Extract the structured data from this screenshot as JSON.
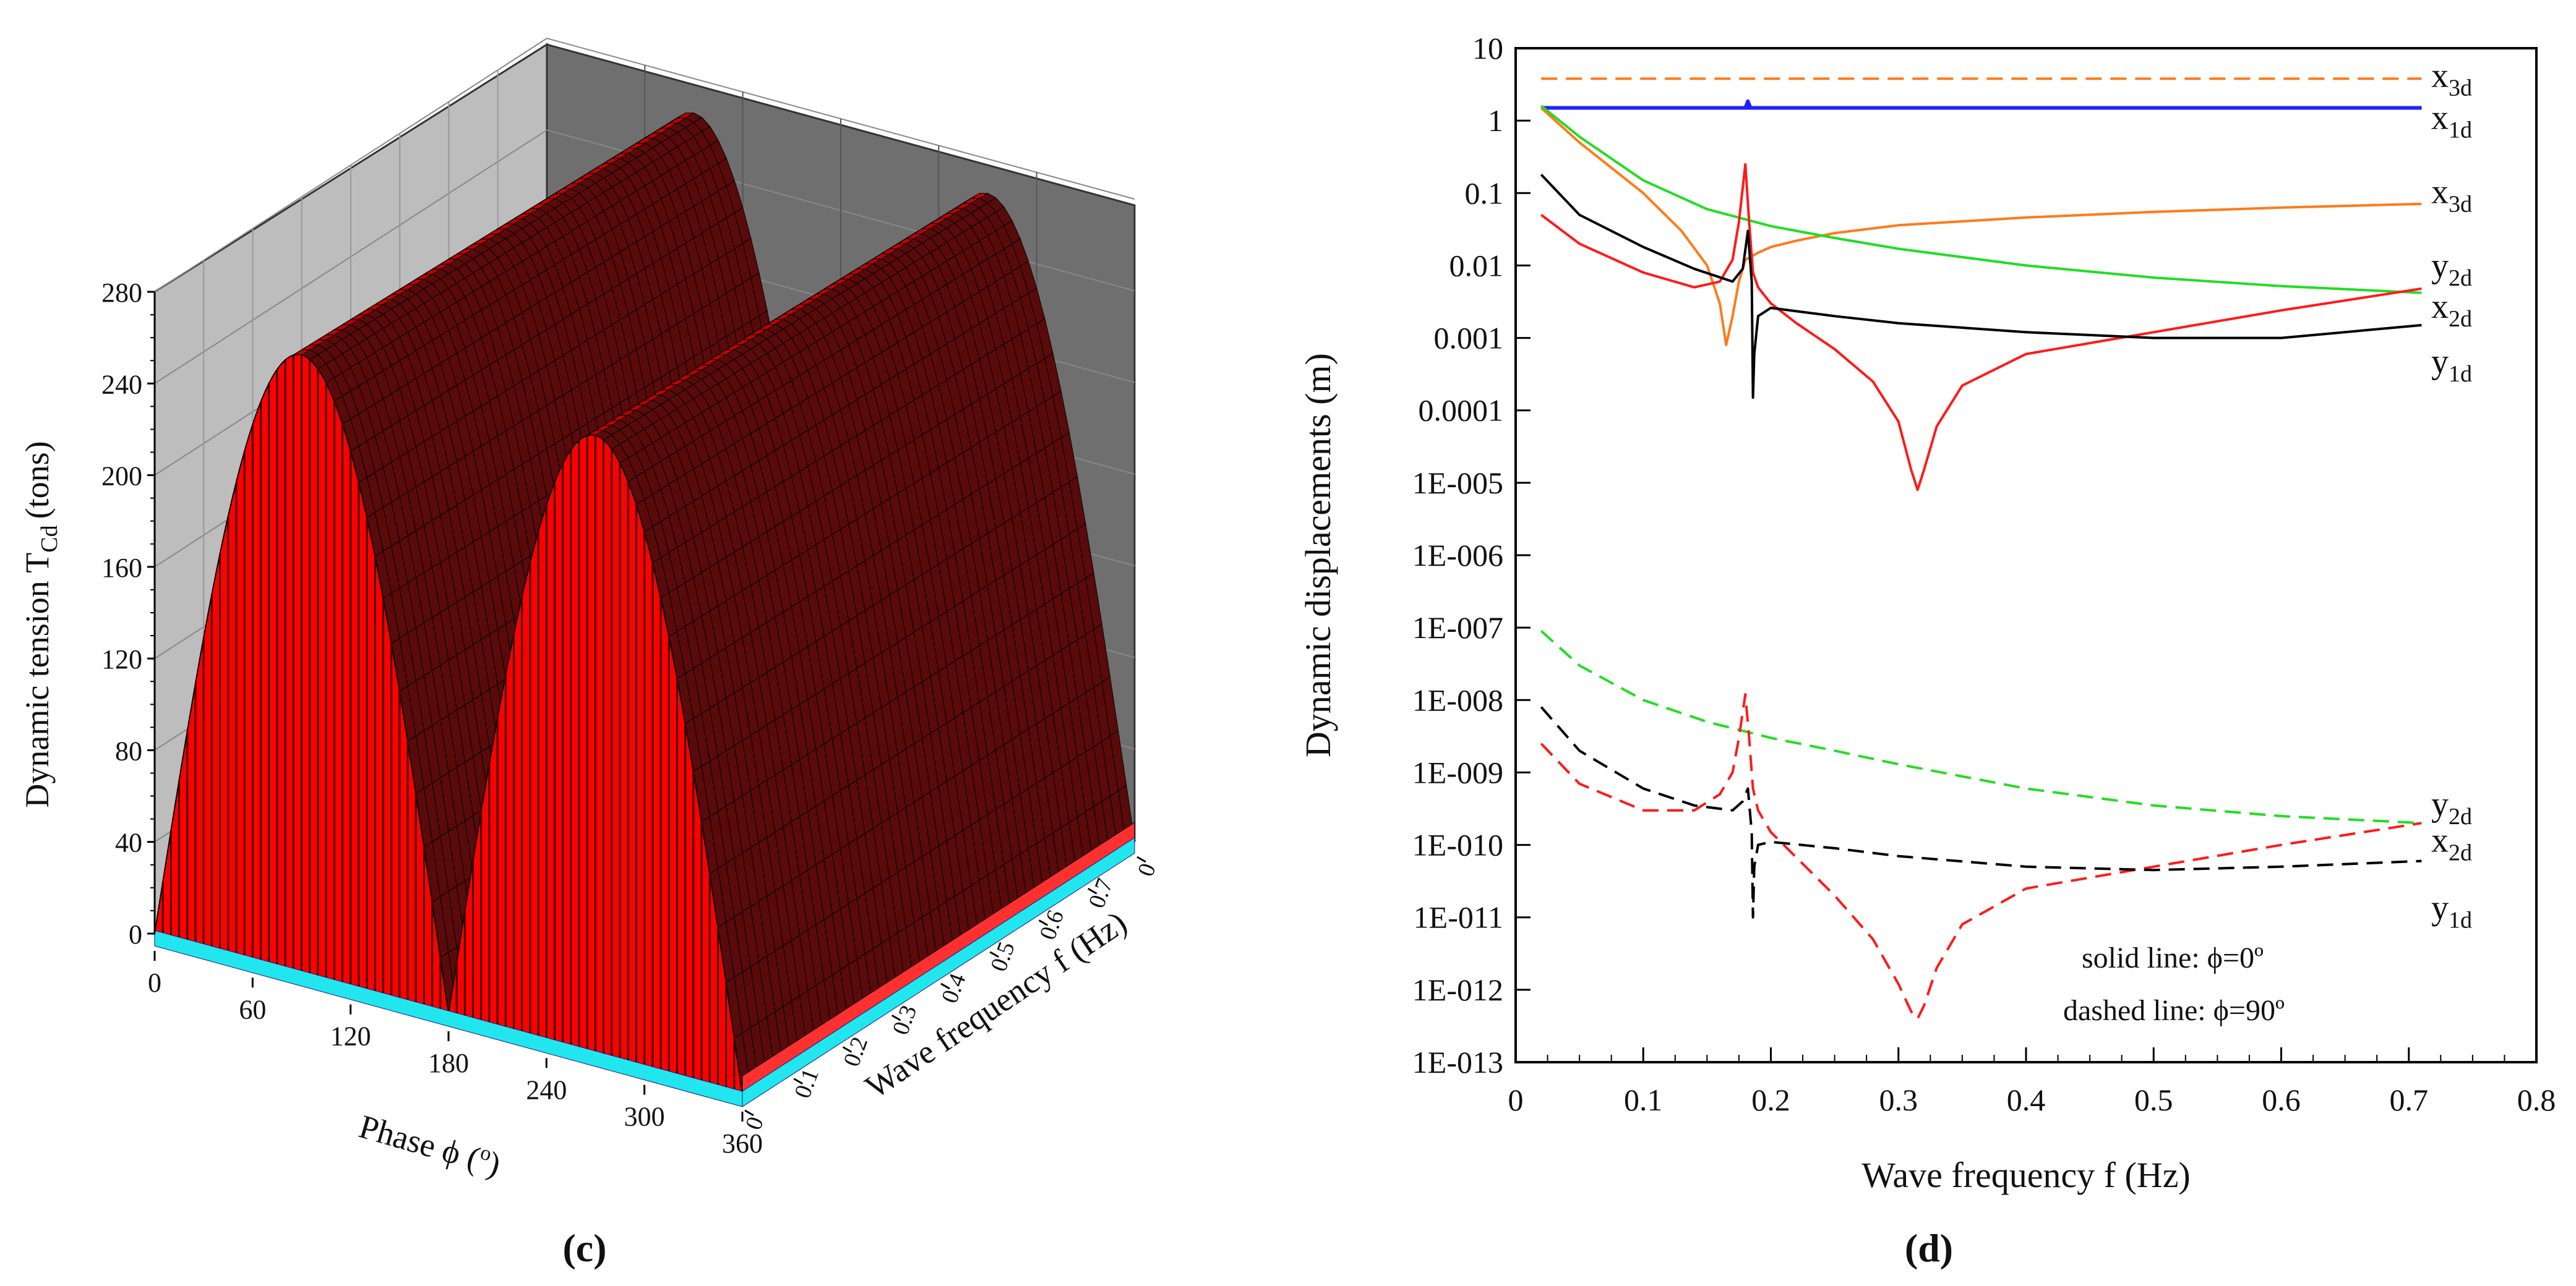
{
  "panel_c": {
    "label": "(c)",
    "ylabel_main": "Dynamic tension T",
    "ylabel_sub": "Cd",
    "ylabel_unit": "(tons)",
    "xlabel_main": "Phase ϕ (",
    "xlabel_sup": "o",
    "xlabel_close": ")",
    "flabel": "Wave frequency f (Hz)"
  },
  "panel_d": {
    "label": "(d)",
    "note_solid": "solid line: ϕ=0º",
    "note_dashed": "dashed line: ϕ=90º"
  },
  "colors": {
    "black": "#000000",
    "blue": "#1e22ff",
    "green": "#22dd22",
    "orange": "#ff7a1a",
    "red": "#ff1a1a",
    "surface": "#ff0000",
    "cyan": "#22e6ee"
  },
  "chart_data": [
    {
      "type": "surface",
      "title": "",
      "zlabel": "Dynamic tension T_Cd (tons)",
      "xlabel": "Phase ϕ (o)",
      "ylabel": "Wave frequency f (Hz)",
      "z_ticks": [
        "0",
        "40",
        "80",
        "120",
        "160",
        "200",
        "240",
        "280"
      ],
      "z_range": [
        0,
        280
      ],
      "phase_ticks": [
        "0",
        "60",
        "120",
        "180",
        "240",
        "300",
        "360"
      ],
      "phase_range": [
        0,
        360
      ],
      "freq_ticks": [
        "0",
        "0.1",
        "0.2",
        "0.3",
        "0.4",
        "0.5",
        "0.6",
        "0.7",
        "0"
      ],
      "freq_range": [
        0,
        0.8
      ],
      "peak_tension_front": 270,
      "peak_tension_back": 265,
      "shape": "|sin(phase)| arches with zero at 0, 180 and 360 degrees"
    },
    {
      "type": "line",
      "yscale": "log",
      "title": "",
      "xlabel": "Wave frequency f (Hz)",
      "ylabel": "Dynamic displacements (m)",
      "xlim": [
        0,
        0.8
      ],
      "ylim": [
        1e-13,
        10
      ],
      "x_ticks": [
        "0",
        "0.1",
        "0.2",
        "0.3",
        "0.4",
        "0.5",
        "0.6",
        "0.7",
        "0.8"
      ],
      "y_ticks": [
        {
          "value": 10,
          "label": "10"
        },
        {
          "value": 1,
          "label": "1"
        },
        {
          "value": 0.1,
          "label": "0.1"
        },
        {
          "value": 0.01,
          "label": "0.01"
        },
        {
          "value": 0.001,
          "label": "0.001"
        },
        {
          "value": 0.0001,
          "label": "0.0001"
        },
        {
          "value": 1e-05,
          "label": "1E-005"
        },
        {
          "value": 1e-06,
          "label": "1E-006"
        },
        {
          "value": 1e-07,
          "label": "1E-007"
        },
        {
          "value": 1e-08,
          "label": "1E-008"
        },
        {
          "value": 1e-09,
          "label": "1E-009"
        },
        {
          "value": 1e-10,
          "label": "1E-010"
        },
        {
          "value": 1e-11,
          "label": "1E-011"
        },
        {
          "value": 1e-12,
          "label": "1E-012"
        },
        {
          "value": 1e-13,
          "label": "1E-013"
        }
      ],
      "series": [
        {
          "name": "x3d (ϕ=90º)",
          "main": "x",
          "sub": "3d",
          "color": "orange",
          "dash": true,
          "label_value": 4.0,
          "x": [
            0.02,
            0.71
          ],
          "y": [
            3.8,
            3.8
          ]
        },
        {
          "name": "x1d",
          "main": "x",
          "sub": "1d",
          "color": "blue",
          "dash": false,
          "label_value": 1.05,
          "x": [
            0.02,
            0.18,
            0.182,
            0.184,
            0.71
          ],
          "y": [
            1.5,
            1.5,
            1.85,
            1.5,
            1.5
          ]
        },
        {
          "name": "x1d (ϕ=90º)",
          "main": "",
          "sub": "",
          "color": "blue",
          "dash": true,
          "x": [
            0.02,
            0.71
          ],
          "y": [
            1.5,
            1.5
          ]
        },
        {
          "name": "x3d (ϕ=0º)",
          "main": "x",
          "sub": "3d",
          "color": "orange",
          "dash": false,
          "label_value": 0.1,
          "x": [
            0.02,
            0.05,
            0.1,
            0.13,
            0.15,
            0.16,
            0.165,
            0.17,
            0.175,
            0.18,
            0.19,
            0.2,
            0.22,
            0.25,
            0.3,
            0.4,
            0.5,
            0.6,
            0.71
          ],
          "y": [
            1.5,
            0.5,
            0.1,
            0.03,
            0.01,
            0.003,
            0.0008,
            0.002,
            0.006,
            0.012,
            0.015,
            0.018,
            0.022,
            0.028,
            0.036,
            0.046,
            0.055,
            0.063,
            0.071
          ]
        },
        {
          "name": "x2d (ϕ=0º)",
          "main": "x",
          "sub": "2d",
          "color": "green",
          "dash": false,
          "label_value": 0.0026,
          "x": [
            0.02,
            0.05,
            0.1,
            0.15,
            0.2,
            0.25,
            0.3,
            0.4,
            0.5,
            0.6,
            0.71
          ],
          "y": [
            1.6,
            0.6,
            0.15,
            0.06,
            0.035,
            0.024,
            0.017,
            0.01,
            0.0068,
            0.0052,
            0.0042
          ]
        },
        {
          "name": "y2d (ϕ=0º)",
          "main": "y",
          "sub": "2d",
          "color": "red",
          "dash": false,
          "label_value": 0.0095,
          "x": [
            0.02,
            0.05,
            0.1,
            0.14,
            0.16,
            0.17,
            0.175,
            0.18,
            0.183,
            0.186,
            0.19,
            0.2,
            0.22,
            0.25,
            0.28,
            0.3,
            0.31,
            0.315,
            0.32,
            0.33,
            0.35,
            0.4,
            0.5,
            0.6,
            0.71
          ],
          "y": [
            0.05,
            0.02,
            0.008,
            0.005,
            0.006,
            0.012,
            0.04,
            0.25,
            0.04,
            0.008,
            0.005,
            0.003,
            0.0016,
            0.0007,
            0.00025,
            7e-05,
            1.5e-05,
            8e-06,
            1.5e-05,
            6e-05,
            0.00022,
            0.0006,
            0.0012,
            0.0024,
            0.0048
          ]
        },
        {
          "name": "y1d (ϕ=0º)",
          "main": "y",
          "sub": "1d",
          "color": "black",
          "dash": false,
          "label_value": 0.00045,
          "x": [
            0.02,
            0.05,
            0.1,
            0.14,
            0.17,
            0.178,
            0.182,
            0.185,
            0.186,
            0.187,
            0.19,
            0.2,
            0.25,
            0.3,
            0.4,
            0.5,
            0.6,
            0.71
          ],
          "y": [
            0.18,
            0.05,
            0.018,
            0.009,
            0.006,
            0.009,
            0.03,
            0.006,
            0.00015,
            0.0006,
            0.002,
            0.0026,
            0.002,
            0.0016,
            0.0012,
            0.001,
            0.001,
            0.0015
          ]
        },
        {
          "name": "x2d (ϕ=90º)",
          "main": "x",
          "sub": "2d",
          "color": "green",
          "dash": true,
          "label_value": 1.1e-10,
          "x": [
            0.02,
            0.05,
            0.1,
            0.15,
            0.2,
            0.25,
            0.3,
            0.4,
            0.5,
            0.6,
            0.71
          ],
          "y": [
            9e-08,
            3e-08,
            1e-08,
            5e-09,
            3e-09,
            2e-09,
            1.3e-09,
            6e-10,
            3.5e-10,
            2.5e-10,
            2e-10
          ]
        },
        {
          "name": "y2d (ϕ=90º)",
          "main": "y",
          "sub": "2d",
          "color": "red",
          "dash": true,
          "label_value": 3.5e-10,
          "x": [
            0.02,
            0.05,
            0.1,
            0.14,
            0.16,
            0.17,
            0.175,
            0.18,
            0.183,
            0.186,
            0.19,
            0.2,
            0.25,
            0.28,
            0.3,
            0.31,
            0.315,
            0.32,
            0.33,
            0.35,
            0.4,
            0.5,
            0.6,
            0.71
          ],
          "y": [
            2.5e-09,
            7e-10,
            3e-10,
            3e-10,
            5e-10,
            1e-09,
            3e-09,
            1.2e-08,
            3e-09,
            6e-10,
            3e-10,
            1.5e-10,
            2e-11,
            5e-12,
            1.2e-12,
            5e-13,
            4e-13,
            6e-13,
            2e-12,
            8e-12,
            2.5e-11,
            5e-11,
            1e-10,
            2e-10
          ]
        },
        {
          "name": "y1d (ϕ=90º)",
          "main": "y",
          "sub": "1d",
          "color": "black",
          "dash": true,
          "label_value": 1.3e-11,
          "x": [
            0.02,
            0.05,
            0.1,
            0.14,
            0.17,
            0.178,
            0.182,
            0.185,
            0.186,
            0.187,
            0.19,
            0.2,
            0.25,
            0.3,
            0.4,
            0.5,
            0.6,
            0.71
          ],
          "y": [
            8e-09,
            2e-09,
            6e-10,
            3.5e-10,
            3e-10,
            4e-10,
            6e-10,
            1.5e-10,
            1e-11,
            5e-11,
            1e-10,
            1.1e-10,
            9e-11,
            7e-11,
            5e-11,
            4.5e-11,
            5e-11,
            6e-11
          ]
        }
      ]
    }
  ]
}
